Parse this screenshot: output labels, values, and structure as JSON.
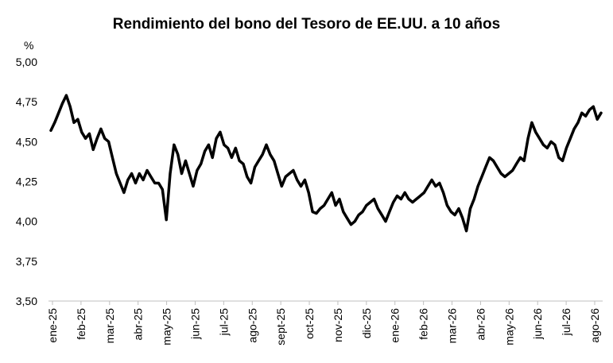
{
  "chart_data": {
    "type": "line",
    "title": "Rendimiento del bono del Tesoro de EE.UU. a 10 años",
    "ylabel": "%",
    "xlabel": "",
    "ylim": [
      3.5,
      5.0
    ],
    "yticks": [
      "5,00",
      "4,75",
      "4,50",
      "4,25",
      "4,00",
      "3,75",
      "3,50"
    ],
    "yticks_values": [
      5.0,
      4.75,
      4.5,
      4.25,
      4.0,
      3.75,
      3.5
    ],
    "xticks": [
      "ene-25",
      "feb-25",
      "mar-25",
      "abr-25",
      "may-25",
      "jun-25",
      "jul-25",
      "ago-25",
      "sept-25",
      "oct-25",
      "nov-25",
      "dic-25",
      "ene-26",
      "feb-26",
      "mar-26",
      "abr-26",
      "may-26",
      "jun-26",
      "jul-26",
      "ago-26"
    ],
    "grid": false,
    "legend": "none",
    "line_color": "#000000",
    "series": [
      {
        "values": [
          4.57,
          4.62,
          4.68,
          4.74,
          4.79,
          4.72,
          4.62,
          4.64,
          4.56,
          4.52,
          4.55,
          4.45,
          4.52,
          4.58,
          4.52,
          4.5,
          4.4,
          4.3,
          4.24,
          4.18,
          4.26,
          4.3,
          4.24,
          4.3,
          4.26,
          4.32,
          4.28,
          4.24,
          4.24,
          4.2,
          4.01,
          4.3,
          4.48,
          4.42,
          4.3,
          4.38,
          4.3,
          4.22,
          4.32,
          4.36,
          4.44,
          4.48,
          4.4,
          4.52,
          4.56,
          4.48,
          4.46,
          4.4,
          4.46,
          4.38,
          4.36,
          4.28,
          4.24,
          4.34,
          4.38,
          4.42,
          4.48,
          4.42,
          4.38,
          4.3,
          4.22,
          4.28,
          4.3,
          4.32,
          4.26,
          4.22,
          4.26,
          4.18,
          4.06,
          4.05,
          4.08,
          4.1,
          4.14,
          4.18,
          4.1,
          4.14,
          4.06,
          4.02,
          3.98,
          4.0,
          4.04,
          4.06,
          4.1,
          4.12,
          4.14,
          4.08,
          4.04,
          4.0,
          4.06,
          4.12,
          4.16,
          4.14,
          4.18,
          4.14,
          4.12,
          4.14,
          4.16,
          4.18,
          4.22,
          4.26,
          4.22,
          4.24,
          4.18,
          4.1,
          4.06,
          4.04,
          4.08,
          4.02,
          3.94,
          4.08,
          4.14,
          4.22,
          4.28,
          4.34,
          4.4,
          4.38,
          4.34,
          4.3,
          4.28,
          4.3,
          4.32,
          4.36,
          4.4,
          4.38,
          4.52,
          4.62,
          4.56,
          4.52,
          4.48,
          4.46,
          4.5,
          4.48,
          4.4,
          4.38,
          4.46,
          4.52,
          4.58,
          4.62,
          4.68,
          4.66,
          4.7,
          4.72,
          4.64,
          4.68
        ]
      }
    ]
  }
}
